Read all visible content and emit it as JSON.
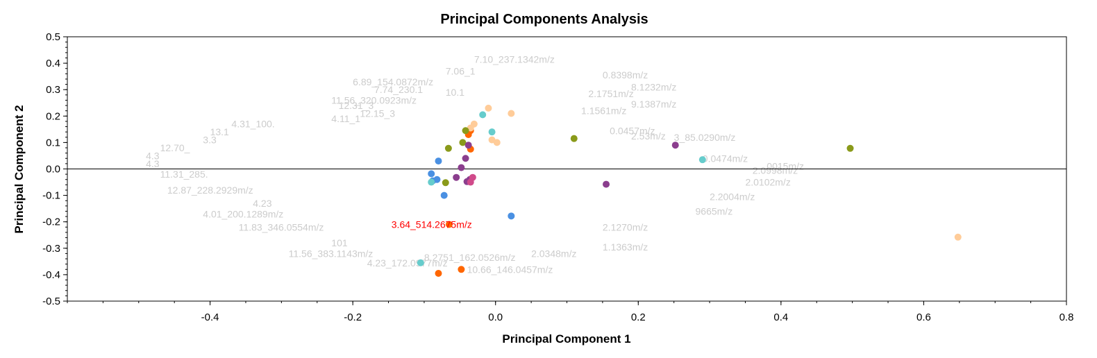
{
  "chart_data": {
    "type": "scatter",
    "title": "Principal Components Analysis",
    "xlabel": "Principal Component 1",
    "ylabel": "Principal Component 2",
    "xlim": [
      -0.6,
      0.8
    ],
    "ylim": [
      -0.5,
      0.5
    ],
    "x_ticks": [
      "-0.4",
      "-0.2",
      "0.0",
      "0.2",
      "0.4",
      "0.6",
      "0.8"
    ],
    "y_ticks": [
      "0.5",
      "0.4",
      "0.3",
      "0.2",
      "0.1",
      "0.0",
      "-0.1",
      "-0.2",
      "-0.3",
      "-0.4",
      "-0.5"
    ],
    "zero_line": true,
    "grid": false,
    "highlighted_label": {
      "text": "3.64_514.2675m/z",
      "x": -0.07,
      "y": -0.21
    },
    "loading_labels": [
      {
        "text": "7.10_237.1342m/z",
        "x": -0.03,
        "y": 0.415
      },
      {
        "text": "6.89_154.0872m/z",
        "x": -0.2,
        "y": 0.33
      },
      {
        "text": "7.06_1",
        "x": -0.07,
        "y": 0.37
      },
      {
        "text": "7.74_230.1",
        "x": -0.17,
        "y": 0.3
      },
      {
        "text": "0.8398m/z",
        "x": 0.15,
        "y": 0.355
      },
      {
        "text": "8.1232m/z",
        "x": 0.19,
        "y": 0.31
      },
      {
        "text": "10.1",
        "x": -0.07,
        "y": 0.29
      },
      {
        "text": "2.1751m/z",
        "x": 0.13,
        "y": 0.285
      },
      {
        "text": "11.56_320.0923m/z",
        "x": -0.23,
        "y": 0.26
      },
      {
        "text": "9.1387m/z",
        "x": 0.19,
        "y": 0.245
      },
      {
        "text": "12.31_3",
        "x": -0.22,
        "y": 0.24
      },
      {
        "text": "12.15_3",
        "x": -0.19,
        "y": 0.21
      },
      {
        "text": "1.1561m/z",
        "x": 0.12,
        "y": 0.22
      },
      {
        "text": "4.31_100.",
        "x": -0.37,
        "y": 0.17
      },
      {
        "text": "4.11_1",
        "x": -0.23,
        "y": 0.19
      },
      {
        "text": "13.1",
        "x": -0.4,
        "y": 0.14
      },
      {
        "text": "0.0457m/z",
        "x": 0.16,
        "y": 0.145
      },
      {
        "text": "3.3",
        "x": -0.41,
        "y": 0.11
      },
      {
        "text": "2.53m/z",
        "x": 0.19,
        "y": 0.125
      },
      {
        "text": "3_85.0290m/z",
        "x": 0.25,
        "y": 0.12
      },
      {
        "text": "12.70_",
        "x": -0.47,
        "y": 0.08
      },
      {
        "text": "0.0474m/z",
        "x": 0.29,
        "y": 0.04
      },
      {
        "text": "4.3",
        "x": -0.49,
        "y": 0.05
      },
      {
        "text": "4.3",
        "x": -0.49,
        "y": 0.02
      },
      {
        "text": "11.31_285.",
        "x": -0.47,
        "y": -0.02
      },
      {
        "text": "0015m/z",
        "x": 0.38,
        "y": 0.01
      },
      {
        "text": "2.0998m/z",
        "x": 0.36,
        "y": -0.005
      },
      {
        "text": "12.87_228.2929m/z",
        "x": -0.46,
        "y": -0.08
      },
      {
        "text": "2.0102m/z",
        "x": 0.35,
        "y": -0.05
      },
      {
        "text": "4.23",
        "x": -0.34,
        "y": -0.13
      },
      {
        "text": "2.2004m/z",
        "x": 0.3,
        "y": -0.105
      },
      {
        "text": "4.01_200.1289m/z",
        "x": -0.41,
        "y": -0.17
      },
      {
        "text": "9665m/z",
        "x": 0.28,
        "y": -0.16
      },
      {
        "text": "11.83_346.0554m/z",
        "x": -0.36,
        "y": -0.22
      },
      {
        "text": "2.1270m/z",
        "x": 0.15,
        "y": -0.22
      },
      {
        "text": "101",
        "x": -0.23,
        "y": -0.28
      },
      {
        "text": "1.1363m/z",
        "x": 0.15,
        "y": -0.295
      },
      {
        "text": "11.56_383.1143m/z",
        "x": -0.29,
        "y": -0.32
      },
      {
        "text": "2.0348m/z",
        "x": 0.05,
        "y": -0.32
      },
      {
        "text": "8.2751_162.0526m/z",
        "x": -0.1,
        "y": -0.335
      },
      {
        "text": "4.23_172.0977m/z",
        "x": -0.18,
        "y": -0.355
      },
      {
        "text": "10.66_146.0457m/z",
        "x": -0.04,
        "y": -0.38
      }
    ],
    "series": [
      {
        "color": "#ff6600",
        "points": [
          [
            -0.035,
            0.145
          ],
          [
            -0.038,
            0.13
          ],
          [
            -0.035,
            0.075
          ],
          [
            -0.065,
            -0.21
          ],
          [
            -0.08,
            -0.395
          ],
          [
            -0.048,
            -0.38
          ]
        ]
      },
      {
        "color": "#ffcc99",
        "points": [
          [
            -0.01,
            0.23
          ],
          [
            0.022,
            0.21
          ],
          [
            -0.03,
            0.17
          ],
          [
            -0.005,
            0.11
          ],
          [
            0.002,
            0.1
          ],
          [
            0.648,
            -0.258
          ],
          [
            -0.035,
            0.155
          ]
        ]
      },
      {
        "color": "#4a90e2",
        "points": [
          [
            -0.08,
            0.03
          ],
          [
            -0.09,
            -0.018
          ],
          [
            -0.082,
            -0.04
          ],
          [
            -0.088,
            -0.045
          ],
          [
            -0.072,
            -0.1
          ],
          [
            0.022,
            -0.178
          ]
        ]
      },
      {
        "color": "#66cccc",
        "points": [
          [
            -0.018,
            0.205
          ],
          [
            -0.005,
            0.14
          ],
          [
            -0.09,
            -0.05
          ],
          [
            0.29,
            0.035
          ],
          [
            -0.105,
            -0.355
          ]
        ]
      },
      {
        "color": "#8a9a1a",
        "points": [
          [
            -0.042,
            0.145
          ],
          [
            -0.066,
            0.078
          ],
          [
            -0.046,
            0.1
          ],
          [
            -0.07,
            -0.052
          ],
          [
            0.11,
            0.115
          ],
          [
            0.497,
            0.078
          ]
        ]
      },
      {
        "color": "#8b3e8e",
        "points": [
          [
            -0.038,
            0.09
          ],
          [
            -0.042,
            0.04
          ],
          [
            -0.048,
            0.005
          ],
          [
            -0.055,
            -0.032
          ],
          [
            -0.04,
            -0.048
          ],
          [
            -0.036,
            -0.04
          ],
          [
            0.155,
            -0.058
          ],
          [
            0.252,
            0.09
          ]
        ]
      },
      {
        "color": "#d04a8a",
        "points": [
          [
            -0.032,
            -0.032
          ],
          [
            -0.035,
            -0.05
          ]
        ]
      }
    ]
  }
}
